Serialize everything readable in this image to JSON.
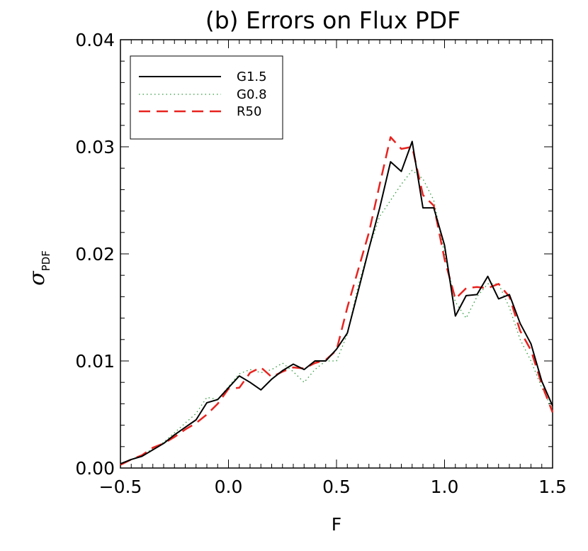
{
  "chart_data": {
    "type": "line",
    "title": "(b) Errors on Flux PDF",
    "xlabel": "F",
    "ylabel": {
      "symbol": "σ",
      "subscript": "PDF"
    },
    "xlim": [
      -0.5,
      1.5
    ],
    "ylim": [
      0.0,
      0.04
    ],
    "x_ticks": [
      -0.5,
      0.0,
      0.5,
      1.0,
      1.5
    ],
    "x_tick_labels": [
      "−0.5",
      "0.0",
      "0.5",
      "1.0",
      "1.5"
    ],
    "y_ticks": [
      0.0,
      0.01,
      0.02,
      0.03,
      0.04
    ],
    "y_tick_labels": [
      "0.00",
      "0.01",
      "0.02",
      "0.03",
      "0.04"
    ],
    "grid": false,
    "legend_position": "top-left",
    "series": [
      {
        "name": "G1.5",
        "color": "#000000",
        "dash": "solid",
        "x": [
          -0.5,
          -0.45,
          -0.4,
          -0.35,
          -0.3,
          -0.25,
          -0.2,
          -0.15,
          -0.1,
          -0.05,
          0.0,
          0.05,
          0.1,
          0.15,
          0.2,
          0.25,
          0.3,
          0.35,
          0.4,
          0.45,
          0.5,
          0.55,
          0.6,
          0.65,
          0.7,
          0.75,
          0.8,
          0.85,
          0.9,
          0.95,
          1.0,
          1.05,
          1.1,
          1.15,
          1.2,
          1.25,
          1.3,
          1.35,
          1.4,
          1.45,
          1.5
        ],
        "y": [
          0.0004,
          0.0008,
          0.0011,
          0.0017,
          0.0023,
          0.0031,
          0.0038,
          0.0045,
          0.0061,
          0.0064,
          0.0075,
          0.0086,
          0.008,
          0.0073,
          0.0083,
          0.0091,
          0.0097,
          0.0092,
          0.01,
          0.01,
          0.0111,
          0.0126,
          0.0165,
          0.0205,
          0.0243,
          0.0286,
          0.0277,
          0.0305,
          0.0243,
          0.0243,
          0.0208,
          0.0142,
          0.0161,
          0.0162,
          0.0179,
          0.0158,
          0.0162,
          0.0135,
          0.0116,
          0.0081,
          0.0058
        ]
      },
      {
        "name": "G0.8",
        "color": "#2e9a3a",
        "dash": "dotted",
        "x": [
          -0.5,
          -0.45,
          -0.4,
          -0.35,
          -0.3,
          -0.25,
          -0.2,
          -0.15,
          -0.1,
          -0.05,
          0.0,
          0.05,
          0.1,
          0.15,
          0.2,
          0.25,
          0.3,
          0.35,
          0.4,
          0.45,
          0.5,
          0.55,
          0.6,
          0.65,
          0.7,
          0.75,
          0.8,
          0.85,
          0.9,
          0.95,
          1.0,
          1.05,
          1.1,
          1.15,
          1.2,
          1.25,
          1.3,
          1.35,
          1.4,
          1.45,
          1.5
        ],
        "y": [
          0.0004,
          0.0008,
          0.0012,
          0.0018,
          0.0024,
          0.0033,
          0.0042,
          0.0051,
          0.0066,
          0.0064,
          0.0076,
          0.0088,
          0.0092,
          0.0089,
          0.0092,
          0.0098,
          0.009,
          0.008,
          0.0092,
          0.01,
          0.01,
          0.0125,
          0.017,
          0.0205,
          0.0235,
          0.025,
          0.0265,
          0.0278,
          0.027,
          0.025,
          0.02,
          0.0155,
          0.014,
          0.016,
          0.0172,
          0.0172,
          0.015,
          0.012,
          0.01,
          0.0075,
          0.0055
        ]
      },
      {
        "name": "R50",
        "color": "#e8231f",
        "dash": "dashed",
        "x": [
          -0.5,
          -0.45,
          -0.4,
          -0.35,
          -0.3,
          -0.25,
          -0.2,
          -0.15,
          -0.1,
          -0.05,
          0.0,
          0.05,
          0.1,
          0.15,
          0.2,
          0.25,
          0.3,
          0.35,
          0.4,
          0.45,
          0.5,
          0.55,
          0.6,
          0.65,
          0.7,
          0.75,
          0.8,
          0.85,
          0.9,
          0.95,
          1.0,
          1.05,
          1.1,
          1.15,
          1.2,
          1.25,
          1.3,
          1.35,
          1.4,
          1.45,
          1.5
        ],
        "y": [
          0.0003,
          0.0008,
          0.0012,
          0.0019,
          0.0023,
          0.0029,
          0.0036,
          0.0042,
          0.005,
          0.006,
          0.0074,
          0.0075,
          0.0089,
          0.0094,
          0.0085,
          0.009,
          0.0094,
          0.0093,
          0.0098,
          0.0101,
          0.011,
          0.015,
          0.0185,
          0.022,
          0.0265,
          0.0309,
          0.0298,
          0.03,
          0.0255,
          0.0245,
          0.0195,
          0.0158,
          0.0168,
          0.0169,
          0.0168,
          0.0172,
          0.016,
          0.0128,
          0.011,
          0.0078,
          0.0052
        ]
      }
    ]
  }
}
